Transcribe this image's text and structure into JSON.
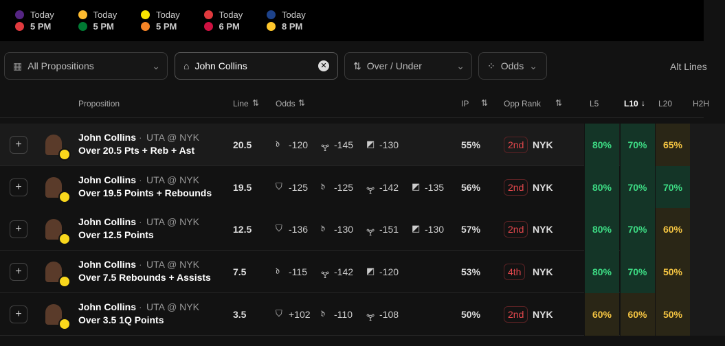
{
  "games": [
    {
      "day": "Today",
      "time": "5 PM",
      "colors": [
        "#552583",
        "#e03a3e"
      ]
    },
    {
      "day": "Today",
      "time": "5 PM",
      "colors": [
        "#fdbb30",
        "#007a33"
      ]
    },
    {
      "day": "Today",
      "time": "5 PM",
      "colors": [
        "#f9e400",
        "#f58426"
      ]
    },
    {
      "day": "Today",
      "time": "6 PM",
      "colors": [
        "#e03a3e",
        "#ce1141"
      ]
    },
    {
      "day": "Today",
      "time": "8 PM",
      "colors": [
        "#1d428a",
        "#ffc72c"
      ]
    }
  ],
  "filters": {
    "propositions": "All Propositions",
    "search": "John Collins",
    "over_under": "Over / Under",
    "odds": "Odds",
    "alt": "Alt Lines"
  },
  "headers": {
    "proposition": "Proposition",
    "line": "Line",
    "odds": "Odds",
    "ip": "IP",
    "rank": "Opp Rank",
    "l5": "L5",
    "l10": "L10",
    "l20": "L20",
    "h2h": "H2H"
  },
  "rows": [
    {
      "player": "John Collins",
      "matchup": "UTA @ NYK",
      "prop": "Over 20.5 Pts + Reb + Ast",
      "line": "20.5",
      "odds": [
        {
          "icon": "dk",
          "value": "-120"
        },
        {
          "icon": "trophy",
          "value": "-145"
        },
        {
          "icon": "square",
          "value": "-130"
        }
      ],
      "ip": "55%",
      "rank": "2nd",
      "opp": "NYK",
      "l5": "80%",
      "l10": "70%",
      "l20": "65%"
    },
    {
      "player": "John Collins",
      "matchup": "UTA @ NYK",
      "prop": "Over 19.5 Points + Rebounds",
      "line": "19.5",
      "odds": [
        {
          "icon": "shield",
          "value": "-125"
        },
        {
          "icon": "dk",
          "value": "-125"
        },
        {
          "icon": "trophy",
          "value": "-142"
        },
        {
          "icon": "square",
          "value": "-135"
        }
      ],
      "ip": "56%",
      "rank": "2nd",
      "opp": "NYK",
      "l5": "80%",
      "l10": "70%",
      "l20": "70%"
    },
    {
      "player": "John Collins",
      "matchup": "UTA @ NYK",
      "prop": "Over 12.5 Points",
      "line": "12.5",
      "odds": [
        {
          "icon": "shield",
          "value": "-136"
        },
        {
          "icon": "dk",
          "value": "-130"
        },
        {
          "icon": "trophy",
          "value": "-151"
        },
        {
          "icon": "square",
          "value": "-130"
        }
      ],
      "ip": "57%",
      "rank": "2nd",
      "opp": "NYK",
      "l5": "80%",
      "l10": "70%",
      "l20": "60%"
    },
    {
      "player": "John Collins",
      "matchup": "UTA @ NYK",
      "prop": "Over 7.5 Rebounds + Assists",
      "line": "7.5",
      "odds": [
        {
          "icon": "dk",
          "value": "-115"
        },
        {
          "icon": "trophy",
          "value": "-142"
        },
        {
          "icon": "square",
          "value": "-120"
        }
      ],
      "ip": "53%",
      "rank": "4th",
      "opp": "NYK",
      "l5": "80%",
      "l10": "70%",
      "l20": "50%"
    },
    {
      "player": "John Collins",
      "matchup": "UTA @ NYK",
      "prop": "Over 3.5 1Q Points",
      "line": "3.5",
      "odds": [
        {
          "icon": "shield",
          "value": "+102"
        },
        {
          "icon": "dk",
          "value": "-110"
        },
        {
          "icon": "trophy",
          "value": "-108"
        }
      ],
      "ip": "50%",
      "rank": "2nd",
      "opp": "NYK",
      "l5": "60%",
      "l10": "60%",
      "l20": "50%"
    }
  ]
}
